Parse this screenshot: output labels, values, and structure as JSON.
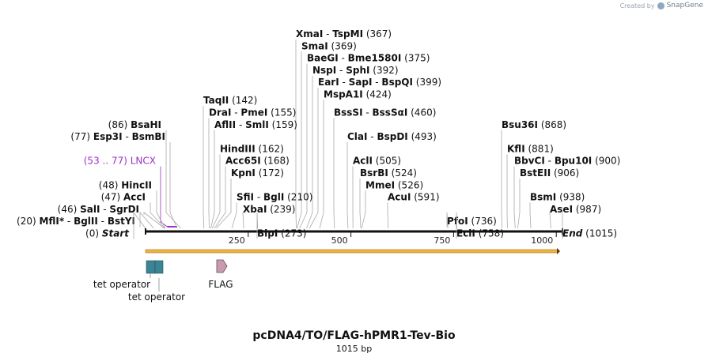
{
  "credit": {
    "text": "Created by",
    "brand": "SnapGene",
    "logo_icon": "snapgene-logo-icon"
  },
  "plasmid": {
    "name": "pcDNA4/TO/FLAG-hPMR1-Tev-Bio",
    "length_label": "1015 bp",
    "length": 1015
  },
  "ruler": {
    "ticks": [
      {
        "value": 250,
        "label": "250"
      },
      {
        "value": 500,
        "label": "500"
      },
      {
        "value": 750,
        "label": "750"
      },
      {
        "value": 1000,
        "label": "1000"
      }
    ]
  },
  "colors": {
    "backbone": "#111111",
    "orf": "#f0b43c",
    "tet_operator": "#3b8496",
    "flag": "#c89cb0",
    "lncx": "#9b30c8",
    "leader": "#aaaaaa"
  },
  "labels": [
    {
      "id": "xmai",
      "pos": 367,
      "row": 0,
      "name": "XmaI",
      "sep": "-",
      "name2": "TspMI",
      "paren": "(367)",
      "side": "right",
      "x0": 374
    },
    {
      "id": "smai",
      "pos": 369,
      "row": 1,
      "name": "SmaI",
      "paren": "(369)",
      "side": "right",
      "x0": 381
    },
    {
      "id": "baegi",
      "pos": 375,
      "row": 2,
      "name": "BaeGI",
      "sep": "-",
      "name2": "Bme1580I",
      "paren": "(375)",
      "side": "right",
      "x0": 388
    },
    {
      "id": "nspi",
      "pos": 392,
      "row": 3,
      "name": "NspI",
      "sep": "-",
      "name2": "SphI",
      "paren": "(392)",
      "side": "right",
      "x0": 395
    },
    {
      "id": "eari",
      "pos": 399,
      "row": 4,
      "name": "EarI",
      "sep": "-",
      "name2": "SapI",
      "sep2": "-",
      "name3": "BspQI",
      "paren": "(399)",
      "side": "right",
      "x0": 402
    },
    {
      "id": "mspa1i",
      "pos": 424,
      "row": 5,
      "name": "MspA1I",
      "paren": "(424)",
      "side": "right",
      "x0": 409
    },
    {
      "id": "taqii",
      "pos": 142,
      "row": 5.5,
      "name": "TaqII",
      "paren": "(142)",
      "side": "right",
      "x0": 257
    },
    {
      "id": "bsssi",
      "pos": 460,
      "row": 6.5,
      "name": "BssSI",
      "sep": "-",
      "name2": "BssSαI",
      "paren": "(460)",
      "side": "right",
      "x0": 422
    },
    {
      "id": "drai",
      "pos": 155,
      "row": 6.5,
      "name": "DraI",
      "sep": "-",
      "name2": "PmeI",
      "paren": "(155)",
      "side": "right",
      "x0": 264
    },
    {
      "id": "bsahi",
      "pos": 86,
      "row": 7.5,
      "name": "BsaHI",
      "paren": "(86)",
      "side": "left",
      "x0": 210
    },
    {
      "id": "aflii",
      "pos": 159,
      "row": 7.5,
      "name": "AflII",
      "sep": "-",
      "name2": "SmlI",
      "paren": "(159)",
      "side": "right",
      "x0": 271
    },
    {
      "id": "bsu36i",
      "pos": 868,
      "row": 7.5,
      "name": "Bsu36I",
      "paren": "(868)",
      "side": "right",
      "x0": 634
    },
    {
      "id": "claI",
      "pos": 493,
      "row": 8.5,
      "name": "ClaI",
      "sep": "-",
      "name2": "BspDI",
      "paren": "(493)",
      "side": "right",
      "x0": 439
    },
    {
      "id": "esp3i",
      "pos": 77,
      "row": 8.5,
      "name": "Esp3I",
      "sep": "-",
      "name2": "BsmBI",
      "paren": "(77)",
      "side": "left",
      "x0": 215
    },
    {
      "id": "hindiii",
      "pos": 162,
      "row": 9.5,
      "name": "HindIII",
      "paren": "(162)",
      "side": "right",
      "x0": 278
    },
    {
      "id": "kfli",
      "pos": 881,
      "row": 9.5,
      "name": "KflI",
      "paren": "(881)",
      "side": "right",
      "x0": 641
    },
    {
      "id": "acli",
      "pos": 505,
      "row": 10.5,
      "name": "AclI",
      "paren": "(505)",
      "side": "right",
      "x0": 446
    },
    {
      "id": "acc65i",
      "pos": 168,
      "row": 10.5,
      "name": "Acc65I",
      "paren": "(168)",
      "side": "right",
      "x0": 285
    },
    {
      "id": "bbvci",
      "pos": 900,
      "row": 10.5,
      "name": "BbvCI",
      "sep": "-",
      "name2": "Bpu10I",
      "paren": "(900)",
      "side": "right",
      "x0": 650
    },
    {
      "id": "lncx",
      "pos": 53,
      "row": 10.5,
      "name": "LNCX",
      "paren": "(53 .. 77)",
      "side": "left",
      "x0": 203,
      "feature": true
    },
    {
      "id": "bsrbi",
      "pos": 524,
      "row": 11.5,
      "name": "BsrBI",
      "paren": "(524)",
      "side": "right",
      "x0": 455
    },
    {
      "id": "kpni",
      "pos": 172,
      "row": 11.5,
      "name": "KpnI",
      "paren": "(172)",
      "side": "right",
      "x0": 292
    },
    {
      "id": "bsteii",
      "pos": 906,
      "row": 11.5,
      "name": "BstEII",
      "paren": "(906)",
      "side": "right",
      "x0": 657
    },
    {
      "id": "mmei",
      "pos": 526,
      "row": 12.5,
      "name": "MmeI",
      "paren": "(526)",
      "side": "right",
      "x0": 462
    },
    {
      "id": "hincii",
      "pos": 48,
      "row": 12.5,
      "name": "HincII",
      "paren": "(48)",
      "side": "left",
      "x0": 198
    },
    {
      "id": "sfii",
      "pos": 210,
      "row": 13.5,
      "name": "SfiI",
      "sep": "-",
      "name2": "BglI",
      "paren": "(210)",
      "side": "right",
      "x0": 299
    },
    {
      "id": "acci",
      "pos": 47,
      "row": 13.5,
      "name": "AccI",
      "paren": "(47)",
      "side": "left",
      "x0": 190
    },
    {
      "id": "acui",
      "pos": 591,
      "row": 13.5,
      "name": "AcuI",
      "paren": "(591)",
      "side": "right",
      "x0": 490
    },
    {
      "id": "bsmi",
      "pos": 938,
      "row": 13.5,
      "name": "BsmI",
      "paren": "(938)",
      "side": "right",
      "x0": 670
    },
    {
      "id": "sali",
      "pos": 46,
      "row": 14.5,
      "name": "SalI",
      "sep": "-",
      "name2": "SgrDI",
      "paren": "(46)",
      "side": "left",
      "x0": 182
    },
    {
      "id": "xbai",
      "pos": 239,
      "row": 14.5,
      "name": "XbaI",
      "paren": "(239)",
      "side": "right",
      "x0": 307
    },
    {
      "id": "asei",
      "pos": 987,
      "row": 14.5,
      "name": "AseI",
      "paren": "(987)",
      "side": "right",
      "x0": 695
    },
    {
      "id": "mfli",
      "pos": 20,
      "row": 15.5,
      "name": "MflI",
      "star": "*",
      "sep": "-",
      "name2": "BglII",
      "sep2": "-",
      "name3": "BstYI",
      "paren": "(20)",
      "side": "left",
      "x0": 177
    },
    {
      "id": "pfoi",
      "pos": 736,
      "row": 15.5,
      "name": "PfoI",
      "paren": "(736)",
      "side": "right",
      "x0": 565
    },
    {
      "id": "blpi",
      "pos": 273,
      "row": 16.5,
      "name": "BlpI",
      "paren": "(273)",
      "side": "right",
      "x0": 325
    },
    {
      "id": "ecli",
      "pos": 758,
      "row": 16.5,
      "name": "EclI",
      "paren": "(758)",
      "side": "right",
      "x0": 577
    },
    {
      "id": "start",
      "pos": 0,
      "row": 16.5,
      "name": "Start",
      "paren": "(0)",
      "side": "left",
      "x0": 169,
      "italic": true
    },
    {
      "id": "end",
      "pos": 1015,
      "row": 16.5,
      "name": "End",
      "paren": "(1015)",
      "side": "right",
      "x0": 711,
      "italic": true
    }
  ],
  "features": {
    "tet_operator_1": {
      "label": "tet operator",
      "start": 7,
      "end": 25
    },
    "tet_operator_2": {
      "label": "tet operator",
      "start": 26,
      "end": 44
    },
    "flag": {
      "label": "FLAG",
      "start": 178,
      "end": 201
    }
  }
}
